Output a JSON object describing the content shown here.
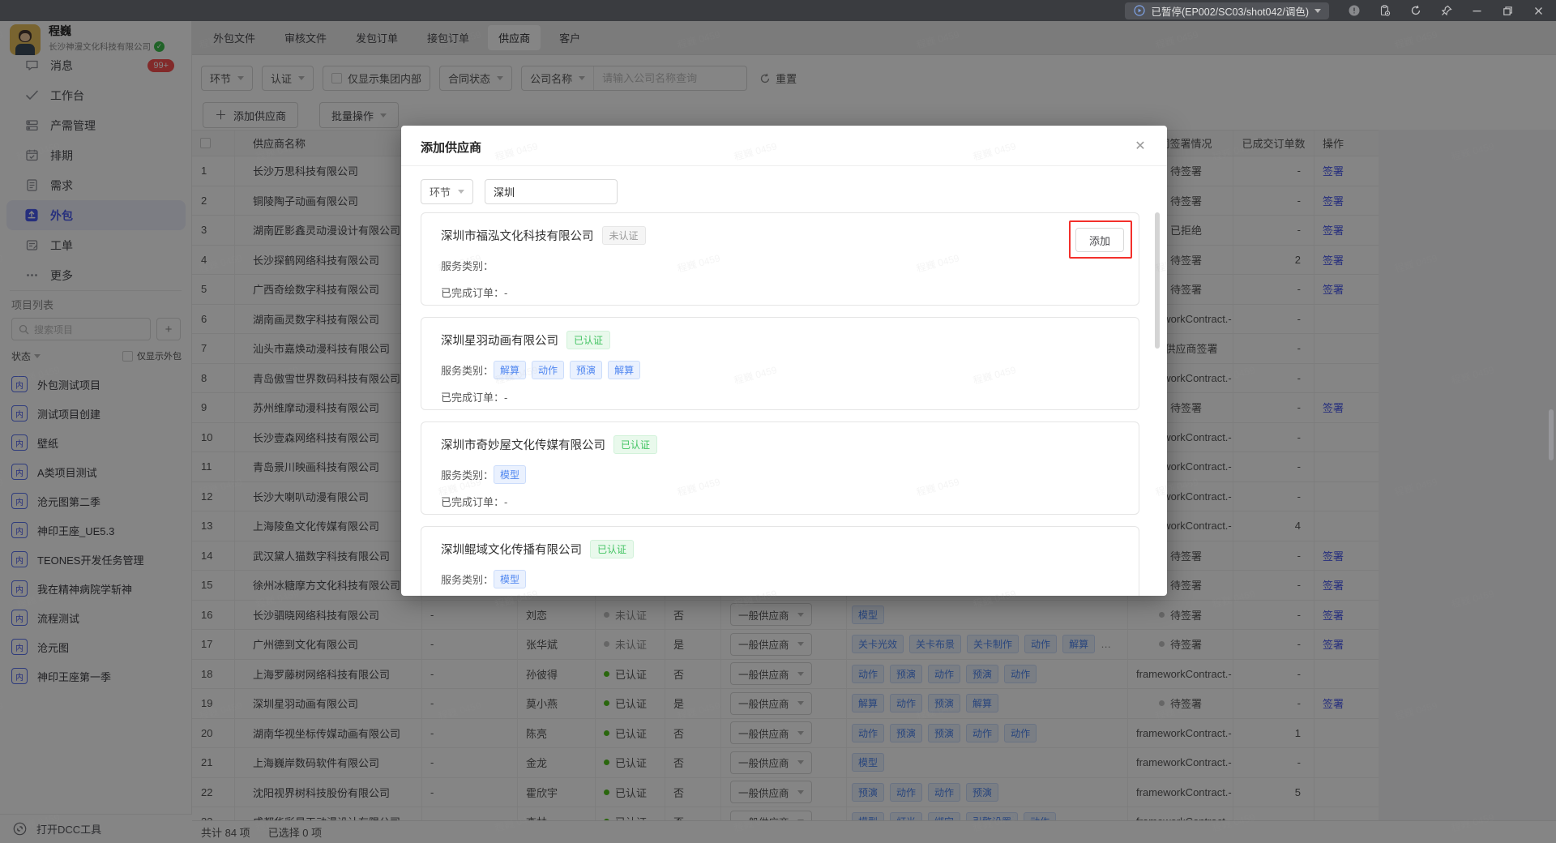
{
  "titlebar": {
    "status_label": "已暂停(EP002/SC03/shot042/调色)"
  },
  "watermark_text": "程巍 0459",
  "sidebar": {
    "user": {
      "name": "程巍",
      "company": "长沙神漫文化科技有限公司"
    },
    "menu": [
      {
        "icon": "message-icon",
        "label": "消息",
        "badge": "99+"
      },
      {
        "icon": "workbench-icon",
        "label": "工作台"
      },
      {
        "icon": "production-icon",
        "label": "产需管理"
      },
      {
        "icon": "schedule-icon",
        "label": "排期"
      },
      {
        "icon": "demand-icon",
        "label": "需求"
      },
      {
        "icon": "outsource-icon",
        "label": "外包",
        "active": true
      },
      {
        "icon": "ticket-icon",
        "label": "工单"
      },
      {
        "icon": "more-icon",
        "label": "更多"
      }
    ],
    "projects_title": "项目列表",
    "project_search_placeholder": "搜索项目",
    "status_label": "状态",
    "only_outsourcing_label": "仅显示外包",
    "project_icon_text": "内",
    "projects": [
      "外包测试项目",
      "测试项目创建",
      "壁纸",
      "A类项目测试",
      "沧元图第二季",
      "神印王座_UE5.3",
      "TEONES开发任务管理",
      "我在精神病院学斩神",
      "流程测试",
      "沧元图",
      "神印王座第一季"
    ],
    "dcc_label": "打开DCC工具"
  },
  "main": {
    "tabs": [
      "外包文件",
      "审核文件",
      "发包订单",
      "接包订单",
      "供应商",
      "客户"
    ],
    "active_tab_index": 4,
    "filters": {
      "stage": "环节",
      "cert": "认证",
      "group_only": "仅显示集团内部",
      "contract_status": "合同状态",
      "company_name": "公司名称",
      "search_placeholder": "请输入公司名称查询",
      "reset": "重置"
    },
    "toolbar": {
      "add_supplier": "添加供应商",
      "batch": "批量操作"
    }
  },
  "table": {
    "headers": {
      "name": "供应商名称",
      "contract": "合同签署情况",
      "orders": "已成交订单数",
      "action": "操作"
    },
    "rows": [
      {
        "n": 1,
        "name": "长沙万思科技有限公司",
        "contract": {
          "s": "gray",
          "t": "待签署"
        },
        "orders": "-",
        "action": "签署"
      },
      {
        "n": 2,
        "name": "铜陵陶子动画有限公司",
        "contract": {
          "s": "gray",
          "t": "待签署"
        },
        "orders": "-",
        "action": "签署"
      },
      {
        "n": 3,
        "name": "湖南匠影鑫灵动漫设计有限公司",
        "contract": {
          "s": "red",
          "t": "已拒绝"
        },
        "orders": "-",
        "action": "签署"
      },
      {
        "n": 4,
        "name": "长沙探鹤网络科技有限公司",
        "contract": {
          "s": "gray",
          "t": "待签署"
        },
        "orders": "2",
        "action": "签署"
      },
      {
        "n": 5,
        "name": "广西奇绘数字科技有限公司",
        "contract": {
          "s": "gray",
          "t": "待签署"
        },
        "orders": "-",
        "action": "签署"
      },
      {
        "n": 6,
        "name": "湖南画灵数字科技有限公司",
        "contract": {
          "t": "frameworkContract.-"
        },
        "orders": "-"
      },
      {
        "n": 7,
        "name": "汕头市嘉焕动漫科技有限公司",
        "contract": {
          "s": "gray",
          "t": "待供应商签署"
        },
        "orders": "-"
      },
      {
        "n": 8,
        "name": "青岛傲雪世界数码科技有限公司",
        "contract": {
          "t": "frameworkContract.-"
        },
        "orders": "-"
      },
      {
        "n": 9,
        "name": "苏州维摩动漫科技有限公司",
        "contract": {
          "s": "gray",
          "t": "待签署"
        },
        "orders": "-",
        "action": "签署"
      },
      {
        "n": 10,
        "name": "长沙壹森网络科技有限公司",
        "contract": {
          "t": "frameworkContract.-"
        },
        "orders": "-"
      },
      {
        "n": 11,
        "name": "青岛景川映画科技有限公司",
        "contract": {
          "t": "frameworkContract.-"
        },
        "orders": "-"
      },
      {
        "n": 12,
        "name": "长沙大喇叭动漫有限公司",
        "contract": {
          "t": "frameworkContract.-"
        },
        "orders": "-"
      },
      {
        "n": 13,
        "name": "上海陵鱼文化传媒有限公司",
        "contract": {
          "t": "frameworkContract.-"
        },
        "orders": "4"
      },
      {
        "n": 14,
        "name": "武汉黛人猫数字科技有限公司",
        "contract": {
          "s": "gray",
          "t": "待签署"
        },
        "orders": "-",
        "action": "签署"
      },
      {
        "n": 15,
        "name": "徐州冰糖摩方文化科技有限公司",
        "contract": {
          "s": "gray",
          "t": "待签署"
        },
        "orders": "-",
        "action": "签署"
      },
      {
        "n": 16,
        "name": "长沙驷晓网络科技有限公司",
        "alias": "-",
        "contact": "刘恋",
        "auth": {
          "s": "gray",
          "t": "未认证"
        },
        "internal": "否",
        "type": "一般供应商",
        "tags": [
          "模型"
        ],
        "contract": {
          "s": "gray",
          "t": "待签署"
        },
        "orders": "-",
        "action": "签署"
      },
      {
        "n": 17,
        "name": "广州德到文化有限公司",
        "alias": "-",
        "contact": "张华斌",
        "auth": {
          "s": "gray",
          "t": "未认证"
        },
        "internal": "是",
        "type": "一般供应商",
        "tags": [
          "关卡光效",
          "关卡布景",
          "关卡制作",
          "动作",
          "解算"
        ],
        "more": true,
        "contract": {
          "s": "gray",
          "t": "待签署"
        },
        "orders": "-",
        "action": "签署"
      },
      {
        "n": 18,
        "name": "上海罗藤树网络科技有限公司",
        "alias": "-",
        "contact": "孙彼得",
        "auth": {
          "s": "green",
          "t": "已认证"
        },
        "internal": "否",
        "type": "一般供应商",
        "tags": [
          "动作",
          "预演",
          "动作",
          "预演",
          "动作"
        ],
        "contract": {
          "t": "frameworkContract.-"
        },
        "orders": "-"
      },
      {
        "n": 19,
        "name": "深圳星羽动画有限公司",
        "alias": "-",
        "contact": "莫小燕",
        "auth": {
          "s": "green",
          "t": "已认证"
        },
        "internal": "是",
        "type": "一般供应商",
        "tags": [
          "解算",
          "动作",
          "预演",
          "解算"
        ],
        "contract": {
          "s": "gray",
          "t": "待签署"
        },
        "orders": "-",
        "action": "签署"
      },
      {
        "n": 20,
        "name": "湖南华视坐标传媒动画有限公司",
        "alias": "-",
        "contact": "陈亮",
        "auth": {
          "s": "green",
          "t": "已认证"
        },
        "internal": "否",
        "type": "一般供应商",
        "tags": [
          "动作",
          "预演",
          "预演",
          "动作",
          "动作"
        ],
        "contract": {
          "t": "frameworkContract.-"
        },
        "orders": "1"
      },
      {
        "n": 21,
        "name": "上海巍岸数码软件有限公司",
        "alias": "-",
        "contact": "金龙",
        "auth": {
          "s": "green",
          "t": "已认证"
        },
        "internal": "否",
        "type": "一般供应商",
        "tags": [
          "模型"
        ],
        "contract": {
          "t": "frameworkContract.-"
        },
        "orders": "-"
      },
      {
        "n": 22,
        "name": "沈阳视界树科技股份有限公司",
        "alias": "-",
        "contact": "霍欣宇",
        "auth": {
          "s": "green",
          "t": "已认证"
        },
        "internal": "否",
        "type": "一般供应商",
        "tags": [
          "预演",
          "动作",
          "动作",
          "预演"
        ],
        "contract": {
          "t": "frameworkContract.-"
        },
        "orders": "5"
      },
      {
        "n": 23,
        "name": "成都华彩星天动漫设计有限公司",
        "alias": "-",
        "contact": "李林",
        "auth": {
          "s": "green",
          "t": "已认证"
        },
        "internal": "否",
        "type": "一般供应商",
        "tags": [
          "模型",
          "灯光",
          "绑定",
          "引擎设置",
          "动作"
        ],
        "contract": {
          "t": "frameworkContract.-"
        },
        "orders": "-"
      }
    ],
    "footer": {
      "total": "共计 84 项",
      "selected": "已选择 0 项"
    }
  },
  "modal": {
    "title": "添加供应商",
    "stage_filter": "环节",
    "keyword_value": "深圳",
    "service_label": "服务类别：",
    "orders_label": "已完成订单：",
    "cards": [
      {
        "name": "深圳市福泓文化科技有限公司",
        "badge": "未认证",
        "badge_type": "gray",
        "tags": [],
        "orders": "-",
        "add_label": "添加",
        "highlight": true
      },
      {
        "name": "深圳星羽动画有限公司",
        "badge": "已认证",
        "badge_type": "green",
        "tags": [
          "解算",
          "动作",
          "预演",
          "解算"
        ],
        "orders": "-"
      },
      {
        "name": "深圳市奇妙屋文化传媒有限公司",
        "badge": "已认证",
        "badge_type": "green",
        "tags": [
          "模型"
        ],
        "orders": "-"
      },
      {
        "name": "深圳鲲域文化传播有限公司",
        "badge": "已认证",
        "badge_type": "green",
        "tags": [
          "模型"
        ],
        "orders": ""
      }
    ]
  }
}
